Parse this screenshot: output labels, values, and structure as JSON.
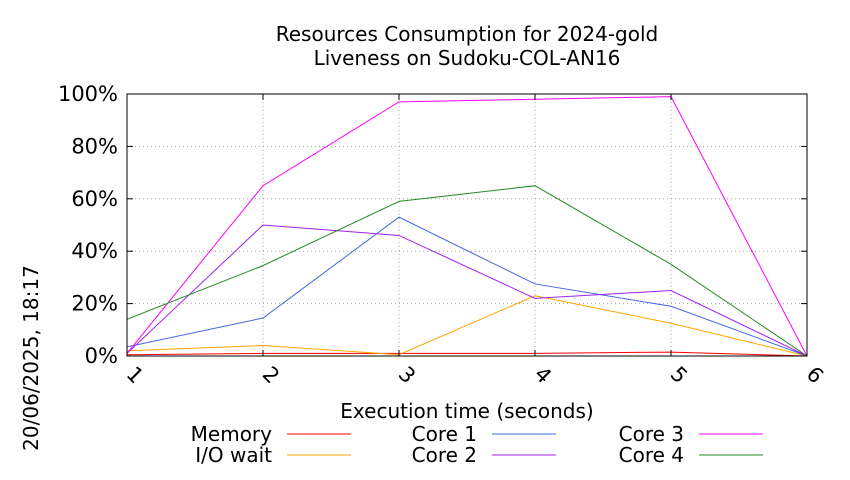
{
  "chart_data": {
    "type": "line",
    "title_line1": "Resources Consumption for 2024-gold",
    "title_line2": "Liveness on Sudoku-COL-AN16",
    "xlabel": "Execution time (seconds)",
    "ylabel": "",
    "side_label": "20/06/2025, 18:17",
    "x": [
      1,
      2,
      3,
      4,
      5,
      6
    ],
    "xlim": [
      1,
      6
    ],
    "ylim": [
      0,
      100
    ],
    "x_ticks": [
      "1",
      "2",
      "3",
      "4",
      "5",
      "6"
    ],
    "y_ticks": [
      {
        "value": 0,
        "label": "0%"
      },
      {
        "value": 20,
        "label": "20%"
      },
      {
        "value": 40,
        "label": "40%"
      },
      {
        "value": 60,
        "label": "60%"
      },
      {
        "value": 80,
        "label": "80%"
      },
      {
        "value": 100,
        "label": "100%"
      }
    ],
    "grid": true,
    "legend_position": "bottom",
    "series": [
      {
        "name": "Memory",
        "color": "#ff0000",
        "values": [
          0.5,
          1,
          1,
          1,
          1.5,
          0
        ]
      },
      {
        "name": "I/O wait",
        "color": "#ffa500",
        "values": [
          2,
          4,
          0.5,
          23,
          12.5,
          0
        ]
      },
      {
        "name": "Core 1",
        "color": "#4169e1",
        "values": [
          3.5,
          14.5,
          53,
          27.5,
          19,
          0
        ]
      },
      {
        "name": "Core 2",
        "color": "#a020f0",
        "values": [
          1,
          50,
          46,
          22,
          25,
          0
        ]
      },
      {
        "name": "Core 3",
        "color": "#ff00ff",
        "values": [
          1,
          65,
          97,
          98,
          99,
          0
        ]
      },
      {
        "name": "Core 4",
        "color": "#228b22",
        "values": [
          14,
          34.5,
          59,
          65,
          35,
          0
        ]
      }
    ]
  }
}
